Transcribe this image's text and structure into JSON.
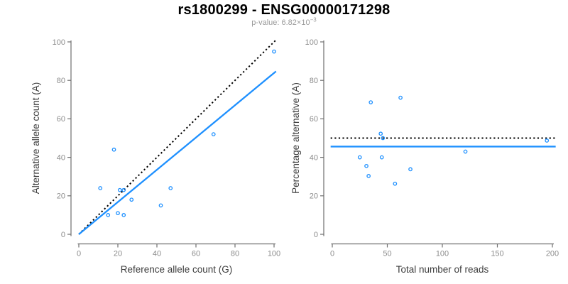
{
  "title": "rs1800299 - ENSG00000171298",
  "subtitle": {
    "text": "p-value: 6.82×10",
    "exponent": "−3"
  },
  "colors": {
    "points": "#1E90FF",
    "fit_line": "#1E90FF",
    "reference_line": "#000000",
    "axis": "#6f6f6f",
    "tick_labels": "#8c8c8c",
    "axis_titles": "#3d3d3d",
    "title": "#000000",
    "subtitle": "#9a9a9a",
    "background": "#ffffff"
  },
  "chart_data": [
    {
      "type": "scatter",
      "name": "allele-counts",
      "xlabel": "Reference allele count (G)",
      "ylabel": "Alternative allele count (A)",
      "xlim": [
        0,
        100
      ],
      "ylim": [
        0,
        100
      ],
      "xticks": [
        0,
        20,
        40,
        60,
        80,
        100
      ],
      "yticks": [
        0,
        20,
        40,
        60,
        80,
        100
      ],
      "grid": false,
      "legend": false,
      "points": [
        [
          100,
          95
        ],
        [
          69,
          52
        ],
        [
          18,
          44
        ],
        [
          47,
          24
        ],
        [
          11,
          24
        ],
        [
          21,
          23
        ],
        [
          23,
          23
        ],
        [
          27,
          18
        ],
        [
          42,
          15
        ],
        [
          20,
          11
        ],
        [
          15,
          10
        ],
        [
          23,
          10
        ]
      ],
      "lines": [
        {
          "name": "identity-line",
          "style": "dotted",
          "color": "#000000",
          "x": [
            0,
            101
          ],
          "y": [
            0,
            101
          ]
        },
        {
          "name": "fit-line",
          "style": "solid",
          "color": "#1E90FF",
          "x": [
            0,
            101
          ],
          "y": [
            0,
            84.7
          ]
        }
      ]
    },
    {
      "type": "scatter",
      "name": "percentage-vs-coverage",
      "xlabel": "Total number of reads",
      "ylabel": "Percentage alternative (A)",
      "xlim": [
        0,
        200
      ],
      "ylim": [
        0,
        100
      ],
      "xticks": [
        0,
        50,
        100,
        150,
        200
      ],
      "yticks": [
        0,
        20,
        40,
        60,
        80,
        100
      ],
      "grid": false,
      "legend": false,
      "points": [
        [
          195,
          48.7
        ],
        [
          121,
          43
        ],
        [
          62,
          71
        ],
        [
          35,
          68.6
        ],
        [
          44,
          52.3
        ],
        [
          46,
          50
        ],
        [
          71,
          33.8
        ],
        [
          45,
          40
        ],
        [
          57,
          26.3
        ],
        [
          31,
          35.5
        ],
        [
          25,
          40
        ],
        [
          33,
          30.3
        ]
      ],
      "lines": [
        {
          "name": "fifty-percent-line",
          "style": "dotted",
          "color": "#000000",
          "x": [
            -1.5,
            203
          ],
          "y": [
            50,
            50
          ]
        },
        {
          "name": "mean-percentage-line",
          "style": "solid",
          "color": "#1E90FF",
          "x": [
            -1.5,
            203
          ],
          "y": [
            45.6,
            45.6
          ]
        }
      ]
    }
  ]
}
